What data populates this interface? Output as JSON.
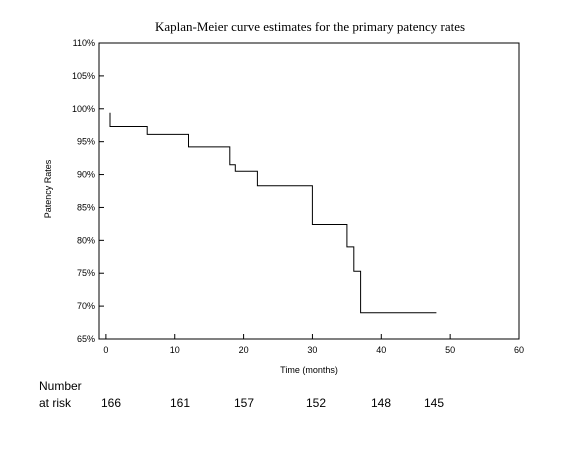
{
  "chart_data": {
    "type": "line",
    "title": "Kaplan-Meier curve estimates for the primary patency rates",
    "xlabel": "Time (months)",
    "ylabel": "Patency Rates",
    "xlim": [
      -1,
      60
    ],
    "ylim": [
      65,
      110
    ],
    "x_ticks": [
      "0",
      "10",
      "20",
      "30",
      "40",
      "50",
      "60"
    ],
    "y_ticks": [
      "65%",
      "70%",
      "75%",
      "80%",
      "85%",
      "90%",
      "95%",
      "100%",
      "105%",
      "110%"
    ],
    "grid": false,
    "series": [
      {
        "step": true,
        "points": [
          [
            0.6,
            99.4
          ],
          [
            0.6,
            97.3
          ],
          [
            6,
            97.3
          ],
          [
            6,
            96.1
          ],
          [
            12,
            96.1
          ],
          [
            12,
            94.2
          ],
          [
            18,
            94.2
          ],
          [
            18,
            91.5
          ],
          [
            18.8,
            91.5
          ],
          [
            18.8,
            90.5
          ],
          [
            22,
            90.5
          ],
          [
            22,
            88.3
          ],
          [
            30,
            88.3
          ],
          [
            30,
            82.4
          ],
          [
            35,
            82.4
          ],
          [
            35,
            79.0
          ],
          [
            36,
            79.0
          ],
          [
            36,
            75.3
          ],
          [
            37,
            75.3
          ],
          [
            37,
            69.0
          ],
          [
            48,
            69.0
          ]
        ]
      }
    ]
  },
  "risk_table": {
    "label_line1": "Number",
    "label_line2": "at risk",
    "values": [
      "166",
      "161",
      "157",
      "152",
      "148",
      "145"
    ]
  }
}
